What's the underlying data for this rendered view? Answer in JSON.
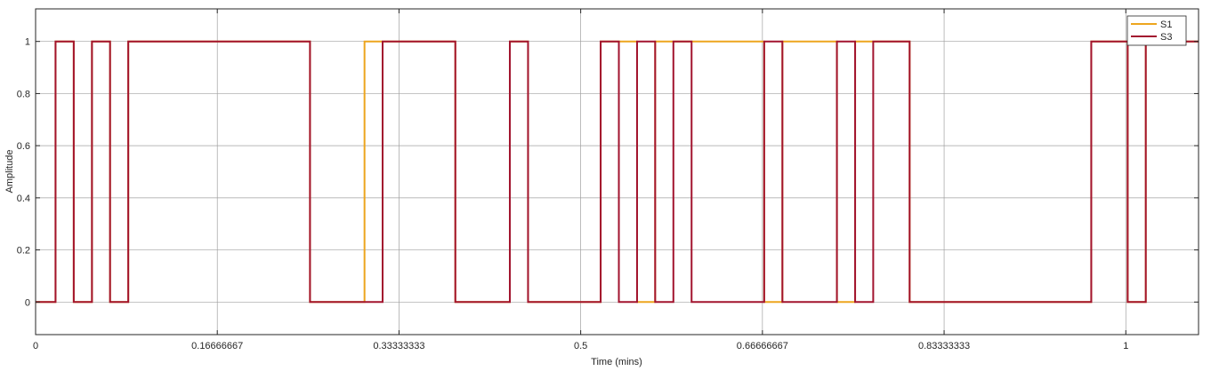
{
  "chart_data": {
    "type": "line",
    "step": true,
    "xlabel": "Time (mins)",
    "ylabel": "Amplitude",
    "xlim": [
      0,
      1.0667
    ],
    "ylim": [
      -0.125,
      1.125
    ],
    "x_ticks": [
      0,
      0.16666667,
      0.33333333,
      0.5,
      0.66666667,
      0.83333333,
      1
    ],
    "x_tick_labels": [
      "0",
      "0.16666667",
      "0.33333333",
      "0.5",
      "0.66666667",
      "0.83333333",
      "1"
    ],
    "y_ticks": [
      0,
      0.2,
      0.4,
      0.6,
      0.8,
      1
    ],
    "y_tick_labels": [
      "0",
      "0.2",
      "0.4",
      "0.6",
      "0.8",
      "1"
    ],
    "grid": true,
    "legend": {
      "placement": "top-right",
      "entries": [
        "S1",
        "S3"
      ]
    },
    "series": [
      {
        "name": "S1",
        "color": "#EDA51E",
        "x": [
          0,
          0.0183,
          0.0183,
          0.035,
          0.035,
          0.0517,
          0.0517,
          0.0683,
          0.0683,
          0.085,
          0.085,
          0.2517,
          0.2517,
          0.3017,
          0.3017,
          0.3183,
          0.3183,
          0.385,
          0.385,
          0.435,
          0.435,
          0.4517,
          0.4517,
          0.5183,
          0.5183,
          0.535,
          0.535,
          0.5517,
          0.5517,
          0.5683,
          0.5683,
          0.585,
          0.585,
          0.6683,
          0.6683,
          0.685,
          0.685,
          0.735,
          0.735,
          0.7517,
          0.7517,
          0.7683,
          0.7683,
          0.8017,
          0.8017,
          0.9683,
          0.9683,
          0.985,
          0.985,
          1.0017,
          1.0017,
          1.0183,
          1.0183,
          1.0667
        ],
        "y": [
          0,
          0,
          1,
          1,
          0,
          0,
          1,
          1,
          0,
          0,
          1,
          1,
          0,
          0,
          1,
          1,
          1,
          1,
          0,
          0,
          1,
          1,
          0,
          0,
          1,
          1,
          1,
          1,
          0,
          0,
          1,
          1,
          1,
          1,
          0,
          0,
          1,
          1,
          0,
          0,
          1,
          1,
          1,
          1,
          0,
          0,
          1,
          1,
          1,
          1,
          0,
          0,
          1,
          1
        ]
      },
      {
        "name": "S3",
        "color": "#A2142F",
        "x": [
          0,
          0.0183,
          0.0183,
          0.035,
          0.035,
          0.0517,
          0.0517,
          0.0683,
          0.0683,
          0.085,
          0.085,
          0.2517,
          0.2517,
          0.3183,
          0.3183,
          0.385,
          0.385,
          0.435,
          0.435,
          0.4517,
          0.4517,
          0.5183,
          0.5183,
          0.535,
          0.535,
          0.5517,
          0.5517,
          0.5683,
          0.5683,
          0.585,
          0.585,
          0.6017,
          0.6017,
          0.6683,
          0.6683,
          0.685,
          0.685,
          0.735,
          0.735,
          0.7517,
          0.7517,
          0.7683,
          0.7683,
          0.8017,
          0.8017,
          0.9683,
          0.9683,
          1.0017,
          1.0017,
          1.0183,
          1.0183,
          1.0667
        ],
        "y": [
          0,
          0,
          1,
          1,
          0,
          0,
          1,
          1,
          0,
          0,
          1,
          1,
          0,
          0,
          1,
          1,
          0,
          0,
          1,
          1,
          0,
          0,
          1,
          1,
          0,
          0,
          1,
          1,
          0,
          0,
          1,
          1,
          0,
          0,
          1,
          1,
          0,
          0,
          1,
          1,
          0,
          0,
          1,
          1,
          0,
          0,
          1,
          1,
          0,
          0,
          1,
          1
        ]
      }
    ]
  }
}
